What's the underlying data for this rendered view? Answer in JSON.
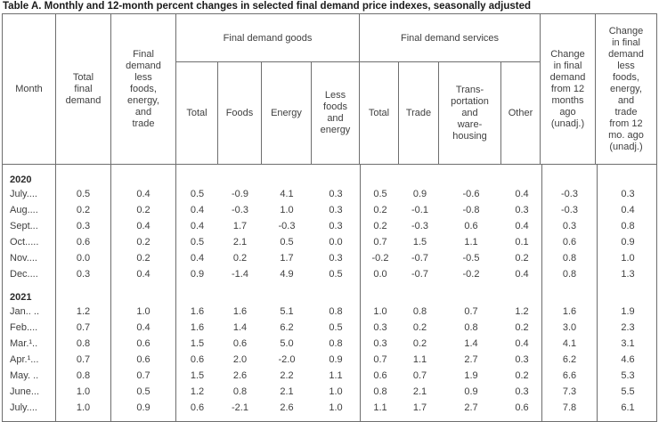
{
  "title": "Table A. Monthly and 12-month percent changes in selected final demand price indexes, seasonally adjusted",
  "header": {
    "month": "Month",
    "total_final_demand": "Total\nfinal\ndemand",
    "less_fet": "Final\ndemand\nless\nfoods,\nenergy,\nand\ntrade",
    "goods_group": "Final demand goods",
    "goods_cols": [
      "Total",
      "Foods",
      "Energy",
      "Less\nfoods\nand\nenergy"
    ],
    "services_group": "Final demand services",
    "services_cols": [
      "Total",
      "Trade",
      "Trans-\nportation\nand\nware-\nhousing",
      "Other"
    ],
    "change_12mo": "Change\nin final\ndemand\nfrom 12\nmonths\nago\n(unadj.)",
    "change_12mo_less_fet": "Change\nin final\ndemand\nless\nfoods,\nenergy,\nand\ntrade\nfrom 12\nmo. ago\n(unadj.)"
  },
  "rows": [
    {
      "type": "year",
      "label": "2020"
    },
    {
      "type": "month",
      "label": "July....",
      "values": [
        "0.5",
        "0.4",
        "0.5",
        "-0.9",
        "4.1",
        "0.3",
        "0.5",
        "0.9",
        "-0.6",
        "0.4",
        "-0.3",
        "0.3"
      ]
    },
    {
      "type": "month",
      "label": "Aug....",
      "values": [
        "0.2",
        "0.2",
        "0.4",
        "-0.3",
        "1.0",
        "0.3",
        "0.2",
        "-0.1",
        "-0.8",
        "0.3",
        "-0.3",
        "0.4"
      ]
    },
    {
      "type": "month",
      "label": "Sept...",
      "values": [
        "0.3",
        "0.4",
        "0.4",
        "1.7",
        "-0.3",
        "0.3",
        "0.2",
        "-0.3",
        "0.6",
        "0.4",
        "0.3",
        "0.8"
      ]
    },
    {
      "type": "month",
      "label": "Oct.....",
      "values": [
        "0.6",
        "0.2",
        "0.5",
        "2.1",
        "0.5",
        "0.0",
        "0.7",
        "1.5",
        "1.1",
        "0.1",
        "0.6",
        "0.9"
      ]
    },
    {
      "type": "month",
      "label": "Nov....",
      "values": [
        "0.0",
        "0.2",
        "0.4",
        "0.2",
        "1.7",
        "0.3",
        "-0.2",
        "-0.7",
        "-0.5",
        "0.2",
        "0.8",
        "1.0"
      ]
    },
    {
      "type": "month",
      "label": "Dec....",
      "values": [
        "0.3",
        "0.4",
        "0.9",
        "-1.4",
        "4.9",
        "0.5",
        "0.0",
        "-0.7",
        "-0.2",
        "0.4",
        "0.8",
        "1.3"
      ]
    },
    {
      "type": "year",
      "label": "2021"
    },
    {
      "type": "month",
      "label": "Jan.. ..",
      "values": [
        "1.2",
        "1.0",
        "1.6",
        "1.6",
        "5.1",
        "0.8",
        "1.0",
        "0.8",
        "0.7",
        "1.2",
        "1.6",
        "1.9"
      ]
    },
    {
      "type": "month",
      "label": "Feb....",
      "values": [
        "0.7",
        "0.4",
        "1.6",
        "1.4",
        "6.2",
        "0.5",
        "0.3",
        "0.2",
        "0.8",
        "0.2",
        "3.0",
        "2.3"
      ]
    },
    {
      "type": "month",
      "label": "Mar.¹..",
      "values": [
        "0.8",
        "0.6",
        "1.5",
        "0.6",
        "5.0",
        "0.8",
        "0.3",
        "0.2",
        "1.4",
        "0.4",
        "4.1",
        "3.1"
      ]
    },
    {
      "type": "month",
      "label": "Apr.¹...",
      "values": [
        "0.7",
        "0.6",
        "0.6",
        "2.0",
        "-2.0",
        "0.9",
        "0.7",
        "1.1",
        "2.7",
        "0.3",
        "6.2",
        "4.6"
      ]
    },
    {
      "type": "month",
      "label": "May. ..",
      "values": [
        "0.8",
        "0.7",
        "1.5",
        "2.6",
        "2.2",
        "1.1",
        "0.6",
        "0.7",
        "1.9",
        "0.2",
        "6.6",
        "5.3"
      ]
    },
    {
      "type": "month",
      "label": "June...",
      "values": [
        "1.0",
        "0.5",
        "1.2",
        "0.8",
        "2.1",
        "1.0",
        "0.8",
        "2.1",
        "0.9",
        "0.3",
        "7.3",
        "5.5"
      ]
    },
    {
      "type": "month",
      "label": "July....",
      "values": [
        "1.0",
        "0.9",
        "0.6",
        "-2.1",
        "2.6",
        "1.0",
        "1.1",
        "1.7",
        "2.7",
        "0.6",
        "7.8",
        "6.1"
      ]
    }
  ]
}
